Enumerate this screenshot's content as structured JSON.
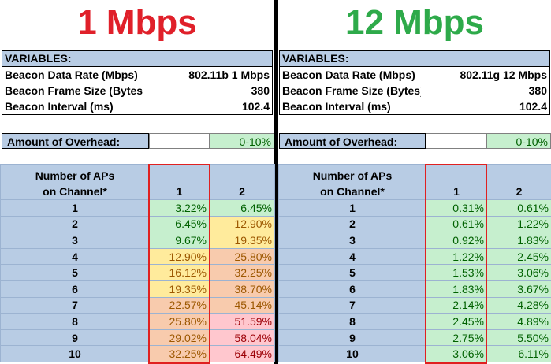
{
  "left": {
    "title": "1 Mbps",
    "title_color": "#e0202a",
    "variables": {
      "header": "VARIABLES:",
      "rows": [
        {
          "label": "Beacon Data Rate (Mbps)",
          "value": "802.11b 1 Mbps"
        },
        {
          "label": "Beacon Frame Size (Bytes)",
          "value": "380"
        },
        {
          "label": "Beacon Interval (ms)",
          "value": "102.4"
        }
      ]
    },
    "overhead": {
      "label": "Amount of Overhead:",
      "legend": "0-10%"
    },
    "table": {
      "header_line1": "Number of APs",
      "header_line2": "on Channel*",
      "columns": [
        "1",
        "2"
      ],
      "rows": [
        {
          "aps": "1",
          "values": [
            "3.22%",
            "6.45%"
          ],
          "levels": [
            "green",
            "green"
          ]
        },
        {
          "aps": "2",
          "values": [
            "6.45%",
            "12.90%"
          ],
          "levels": [
            "green",
            "yellow"
          ]
        },
        {
          "aps": "3",
          "values": [
            "9.67%",
            "19.35%"
          ],
          "levels": [
            "green",
            "yellow"
          ]
        },
        {
          "aps": "4",
          "values": [
            "12.90%",
            "25.80%"
          ],
          "levels": [
            "yellow",
            "orange"
          ]
        },
        {
          "aps": "5",
          "values": [
            "16.12%",
            "32.25%"
          ],
          "levels": [
            "yellow",
            "orange"
          ]
        },
        {
          "aps": "6",
          "values": [
            "19.35%",
            "38.70%"
          ],
          "levels": [
            "yellow",
            "orange"
          ]
        },
        {
          "aps": "7",
          "values": [
            "22.57%",
            "45.14%"
          ],
          "levels": [
            "orange",
            "orange"
          ]
        },
        {
          "aps": "8",
          "values": [
            "25.80%",
            "51.59%"
          ],
          "levels": [
            "orange",
            "red"
          ]
        },
        {
          "aps": "9",
          "values": [
            "29.02%",
            "58.04%"
          ],
          "levels": [
            "orange",
            "red"
          ]
        },
        {
          "aps": "10",
          "values": [
            "32.25%",
            "64.49%"
          ],
          "levels": [
            "orange",
            "red"
          ]
        }
      ]
    }
  },
  "right": {
    "title": "12 Mbps",
    "title_color": "#2eaa4a",
    "variables": {
      "header": "VARIABLES:",
      "rows": [
        {
          "label": "Beacon Data Rate (Mbps)",
          "value": "802.11g 12 Mbps"
        },
        {
          "label": "Beacon Frame Size (Bytes)",
          "value": "380"
        },
        {
          "label": "Beacon Interval (ms)",
          "value": "102.4"
        }
      ]
    },
    "overhead": {
      "label": "Amount of Overhead:",
      "legend": "0-10%"
    },
    "table": {
      "header_line1": "Number of APs",
      "header_line2": "on Channel*",
      "columns": [
        "1",
        "2"
      ],
      "rows": [
        {
          "aps": "1",
          "values": [
            "0.31%",
            "0.61%"
          ],
          "levels": [
            "green",
            "green"
          ]
        },
        {
          "aps": "2",
          "values": [
            "0.61%",
            "1.22%"
          ],
          "levels": [
            "green",
            "green"
          ]
        },
        {
          "aps": "3",
          "values": [
            "0.92%",
            "1.83%"
          ],
          "levels": [
            "green",
            "green"
          ]
        },
        {
          "aps": "4",
          "values": [
            "1.22%",
            "2.45%"
          ],
          "levels": [
            "green",
            "green"
          ]
        },
        {
          "aps": "5",
          "values": [
            "1.53%",
            "3.06%"
          ],
          "levels": [
            "green",
            "green"
          ]
        },
        {
          "aps": "6",
          "values": [
            "1.83%",
            "3.67%"
          ],
          "levels": [
            "green",
            "green"
          ]
        },
        {
          "aps": "7",
          "values": [
            "2.14%",
            "4.28%"
          ],
          "levels": [
            "green",
            "green"
          ]
        },
        {
          "aps": "8",
          "values": [
            "2.45%",
            "4.89%"
          ],
          "levels": [
            "green",
            "green"
          ]
        },
        {
          "aps": "9",
          "values": [
            "2.75%",
            "5.50%"
          ],
          "levels": [
            "green",
            "green"
          ]
        },
        {
          "aps": "10",
          "values": [
            "3.06%",
            "6.11%"
          ],
          "levels": [
            "green",
            "green"
          ]
        }
      ]
    }
  }
}
